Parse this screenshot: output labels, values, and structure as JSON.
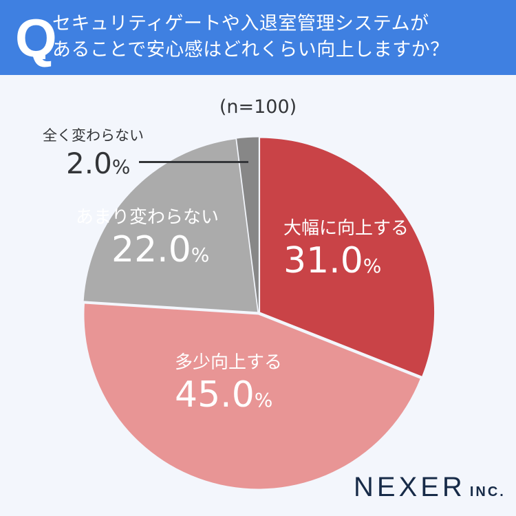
{
  "header": {
    "q_mark": "Q",
    "question_line1": "セキュリティゲートや入退室管理システムが",
    "question_line2": "あることで安心感はどれくらい向上しますか？"
  },
  "sample_size": "(n=100)",
  "logo": {
    "main": "NEXER",
    "suffix": "INC."
  },
  "colors": {
    "header": "#3f80e1",
    "background": "#f3f6fc",
    "significant": "#c94347",
    "somewhat": "#e89595",
    "not_much": "#ababab",
    "not_at_all": "#878787"
  },
  "chart_data": {
    "type": "pie",
    "title": "セキュリティゲートや入退室管理システムがあることで安心感はどれくらい向上しますか？",
    "subtitle": "(n=100)",
    "categories": [
      "大幅に向上する",
      "多少向上する",
      "あまり変わらない",
      "全く変わらない"
    ],
    "values": [
      31.0,
      45.0,
      22.0,
      2.0
    ],
    "unit": "%",
    "colors": [
      "#c94347",
      "#e89595",
      "#ababab",
      "#878787"
    ],
    "start_angle": "12 o'clock, clockwise",
    "labels": [
      {
        "category": "大幅に向上する",
        "value": "31.0",
        "unit": "%"
      },
      {
        "category": "多少向上する",
        "value": "45.0",
        "unit": "%"
      },
      {
        "category": "あまり変わらない",
        "value": "22.0",
        "unit": "%"
      },
      {
        "category": "全く変わらない",
        "value": "2.0",
        "unit": "%"
      }
    ]
  }
}
